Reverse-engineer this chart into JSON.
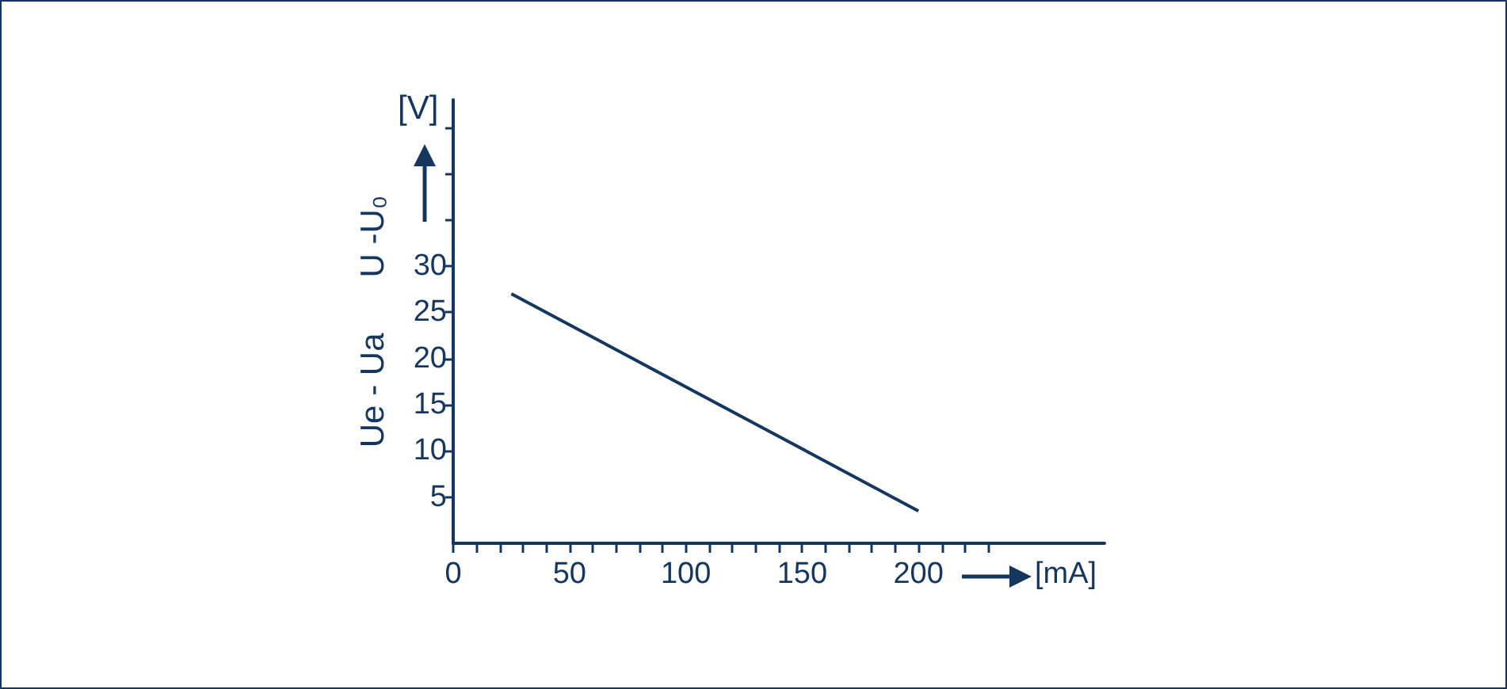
{
  "chart_data": {
    "type": "line",
    "xlabel": "[mA]",
    "ylabel": "Ue - Ua      U -U₀",
    "annotations": [
      "[V]"
    ],
    "series": [
      {
        "color": "#15375f",
        "x": [
          25,
          200
        ],
        "values": [
          27,
          3.5
        ]
      }
    ],
    "xlim": [
      0,
      280
    ],
    "ylim": [
      0,
      48
    ],
    "xticks": [
      0,
      {
        "value": 10,
        "label": null
      },
      {
        "value": 20,
        "label": null
      },
      {
        "value": 30,
        "label": null
      },
      {
        "value": 40,
        "label": null
      },
      50,
      {
        "value": 60,
        "label": null
      },
      {
        "value": 70,
        "label": null
      },
      {
        "value": 80,
        "label": null
      },
      {
        "value": 90,
        "label": null
      },
      100,
      {
        "value": 110,
        "label": null
      },
      {
        "value": 120,
        "label": null
      },
      {
        "value": 130,
        "label": null
      },
      {
        "value": 140,
        "label": null
      },
      150,
      {
        "value": 160,
        "label": null
      },
      {
        "value": 170,
        "label": null
      },
      {
        "value": 180,
        "label": null
      },
      {
        "value": 190,
        "label": null
      },
      200,
      {
        "value": 210,
        "label": null
      },
      {
        "value": 220,
        "label": null
      },
      {
        "value": 230,
        "label": null
      }
    ],
    "yticks": [
      5,
      10,
      15,
      20,
      25,
      30,
      {
        "value": 35,
        "label": null
      },
      {
        "value": 40,
        "label": null
      },
      {
        "value": 45,
        "label": null
      }
    ],
    "grid": false,
    "marker": "none",
    "line_style": "solid"
  }
}
